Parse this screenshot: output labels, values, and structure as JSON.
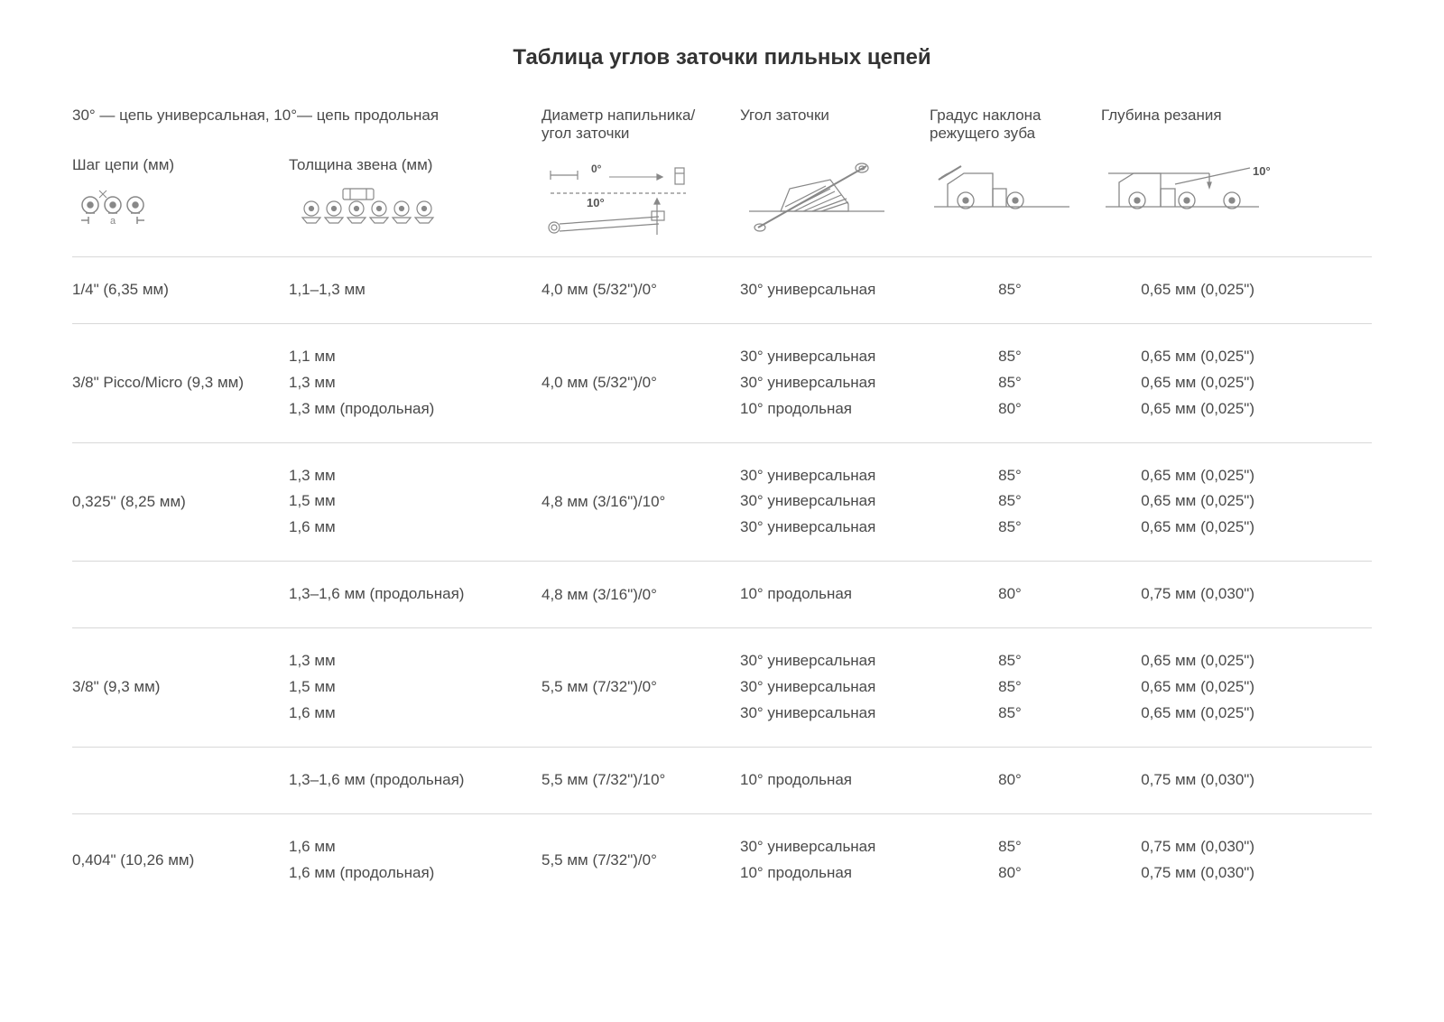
{
  "title": "Таблица углов заточки пильных цепей",
  "legend": "30° — цепь универсальная, 10°— цепь продольная",
  "headers": {
    "c1": "Шаг цепи (мм)",
    "c2": "Толщина звена (мм)",
    "c3": "Диаметр напильника/ угол заточки",
    "c4": "Угол заточки",
    "c5": "Градус наклона режущего зуба",
    "c6": "Глубина резания"
  },
  "diag_labels": {
    "zero": "0°",
    "ten": "10°",
    "tenR": "10°"
  },
  "rows": [
    {
      "pitch": "1/4\" (6,35 мм)",
      "gauge": [
        "1,1–1,3 мм"
      ],
      "file": "4,0 мм (5/32\")/0°",
      "angle": [
        "30° универсальная"
      ],
      "tilt": [
        "85°"
      ],
      "depth": [
        "0,65 мм (0,025\")"
      ]
    },
    {
      "pitch": "3/8\" Picco/Micro (9,3 мм)",
      "gauge": [
        "1,1 мм",
        "1,3 мм",
        "1,3 мм (продольная)"
      ],
      "file": "4,0 мм (5/32\")/0°",
      "angle": [
        "30° универсальная",
        "30° универсальная",
        "10° продольная"
      ],
      "tilt": [
        "85°",
        "85°",
        "80°"
      ],
      "depth": [
        "0,65 мм (0,025\")",
        "0,65 мм (0,025\")",
        "0,65 мм (0,025\")"
      ]
    },
    {
      "pitch": "0,325\" (8,25 мм)",
      "gauge": [
        "1,3 мм",
        "1,5 мм",
        "1,6 мм"
      ],
      "file": "4,8 мм (3/16\")/10°",
      "angle": [
        "30° универсальная",
        "30° универсальная",
        "30° универсальная"
      ],
      "tilt": [
        "85°",
        "85°",
        "85°"
      ],
      "depth": [
        "0,65 мм (0,025\")",
        "0,65 мм (0,025\")",
        "0,65 мм (0,025\")"
      ]
    },
    {
      "pitch": "",
      "gauge": [
        "1,3–1,6 мм (продольная)"
      ],
      "file": "4,8 мм (3/16\")/0°",
      "angle": [
        "10° продольная"
      ],
      "tilt": [
        "80°"
      ],
      "depth": [
        "0,75 мм (0,030\")"
      ]
    },
    {
      "pitch": "3/8\" (9,3 мм)",
      "gauge": [
        "1,3 мм",
        "1,5 мм",
        "1,6 мм"
      ],
      "file": "5,5 мм (7/32\")/0°",
      "angle": [
        "30° универсальная",
        "30° универсальная",
        "30° универсальная"
      ],
      "tilt": [
        "85°",
        "85°",
        "85°"
      ],
      "depth": [
        "0,65 мм (0,025\")",
        "0,65 мм (0,025\")",
        "0,65 мм (0,025\")"
      ]
    },
    {
      "pitch": "",
      "gauge": [
        "1,3–1,6 мм (продольная)"
      ],
      "file": "5,5 мм (7/32\")/10°",
      "angle": [
        "10° продольная"
      ],
      "tilt": [
        "80°"
      ],
      "depth": [
        "0,75 мм (0,030\")"
      ]
    },
    {
      "pitch": "0,404\" (10,26 мм)",
      "gauge": [
        "1,6 мм",
        "1,6 мм (продольная)"
      ],
      "file": "5,5 мм (7/32\")/0°",
      "angle": [
        "30° универсальная",
        "10° продольная"
      ],
      "tilt": [
        "85°",
        "80°"
      ],
      "depth": [
        "0,75 мм (0,030\")",
        "0,75 мм (0,030\")"
      ]
    }
  ]
}
